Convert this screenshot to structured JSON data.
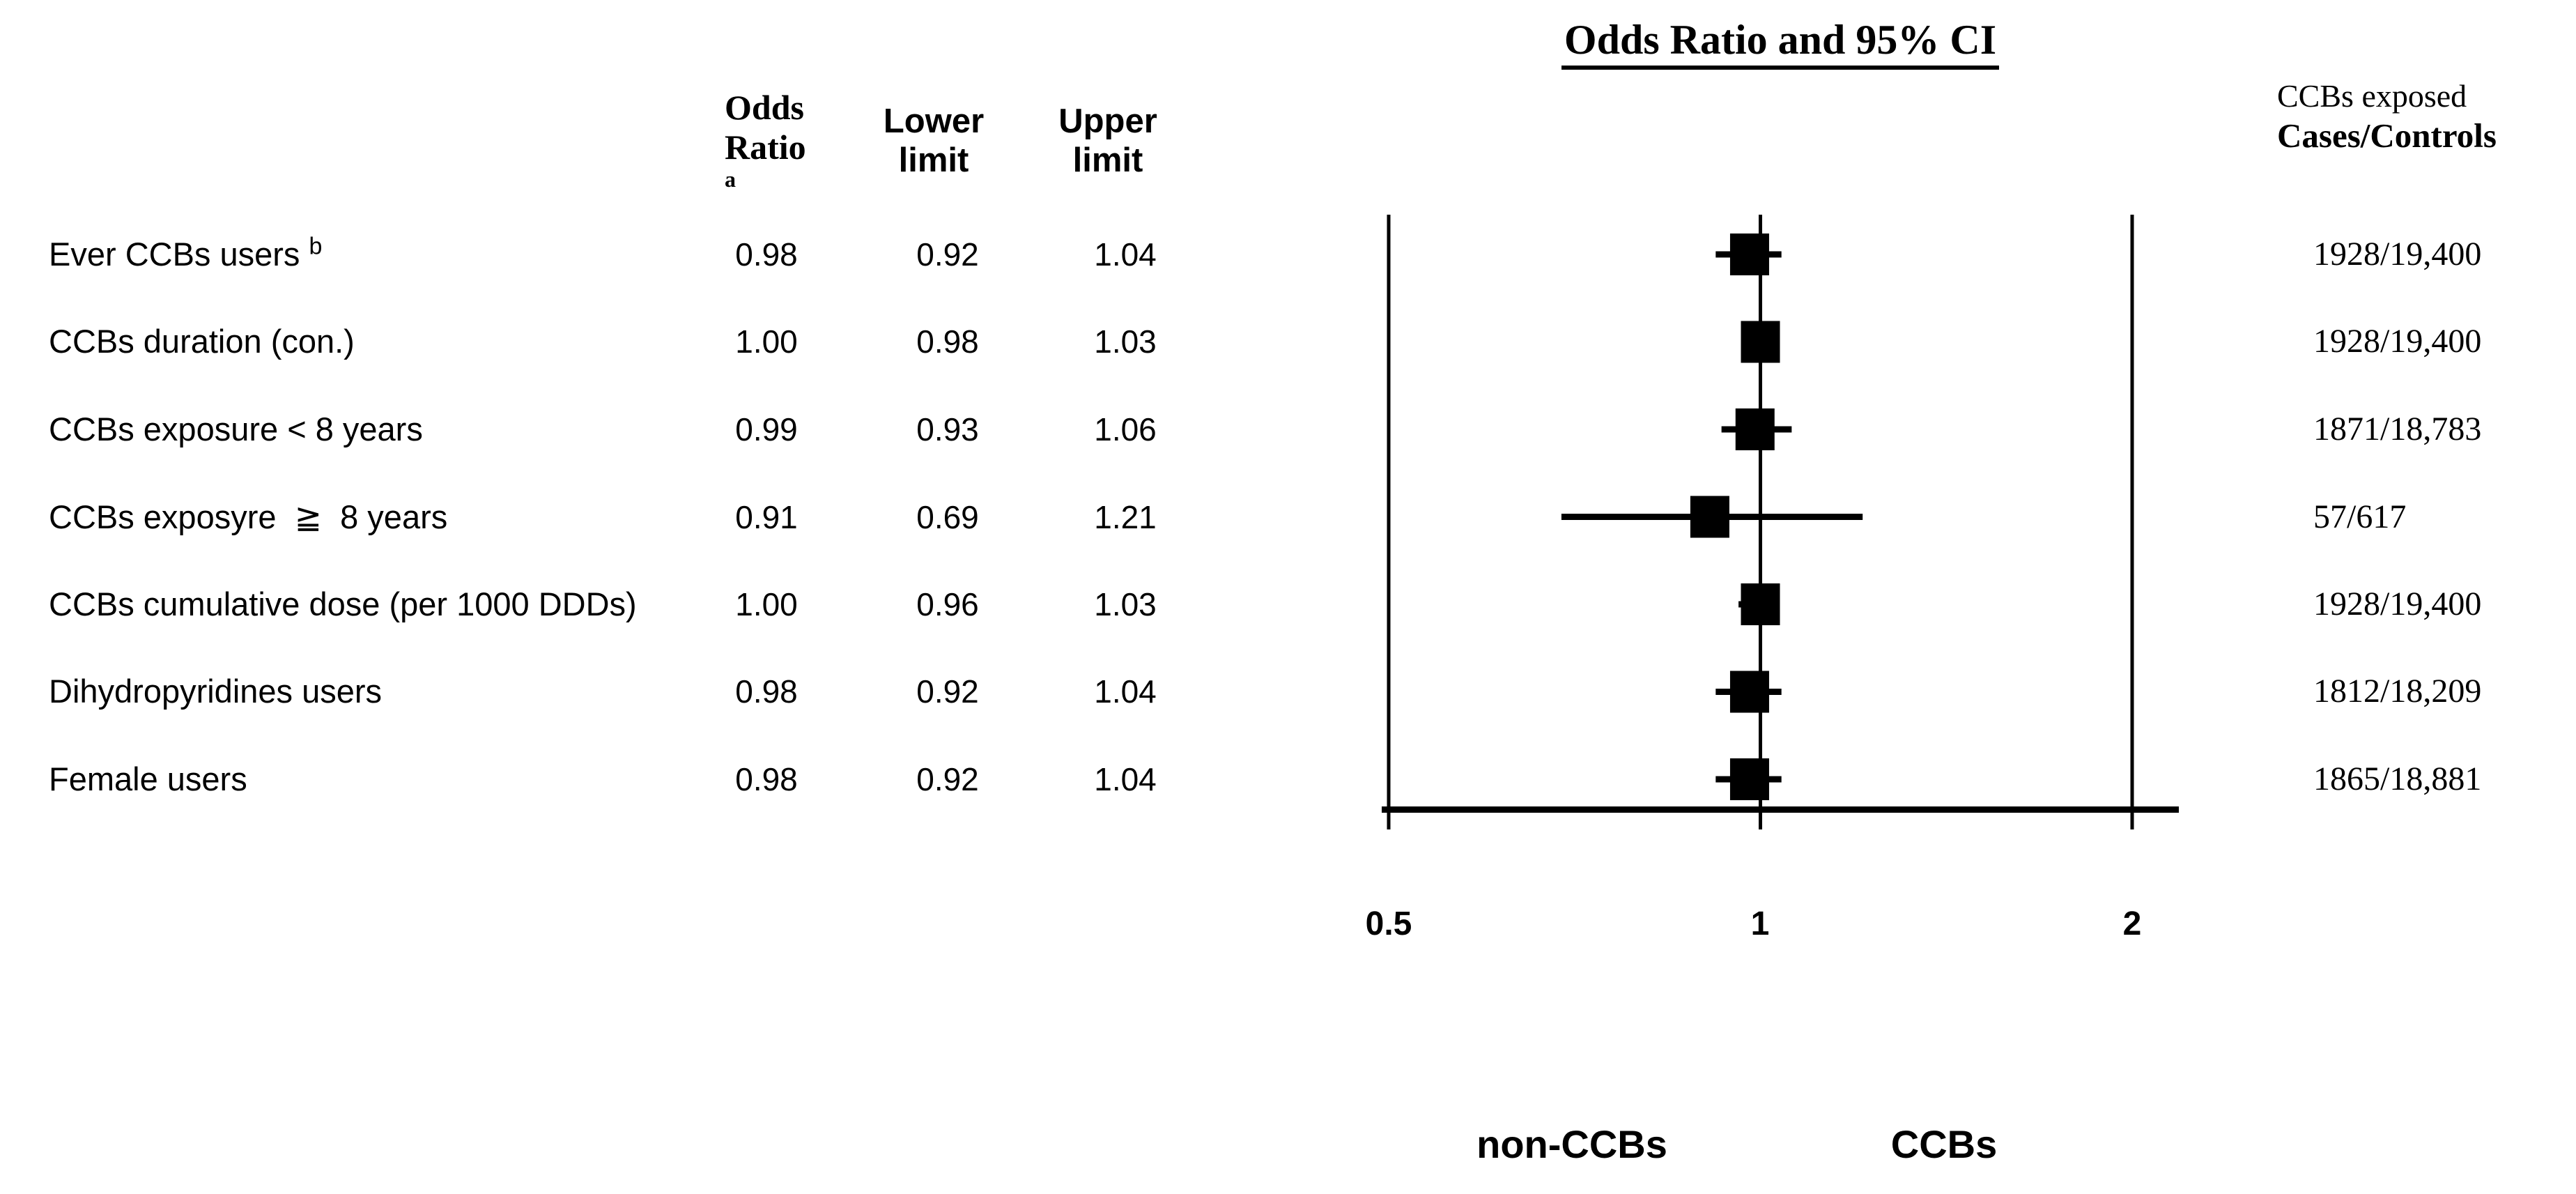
{
  "figure": {
    "title": "Odds Ratio and 95% CI"
  },
  "table": {
    "or_header": "Odds Ratio",
    "or_header_footnote": "a",
    "lower_header": "Lower limit",
    "upper_header": "Upper limit"
  },
  "right_column": {
    "header_line1": "CCBs exposed",
    "header_line2": "Cases/Controls"
  },
  "chart_data": {
    "type": "scatter",
    "variant": "forest-plot",
    "title": "Odds Ratio and 95% CI",
    "x_scale": "log2",
    "x_range": [
      0.5,
      2
    ],
    "x_ticks": [
      "0.5",
      "1",
      "2"
    ],
    "reference_line": 1,
    "grid": false,
    "marker": "filled-square",
    "color": "#000000",
    "group_label_left": "non-CCBs",
    "group_label_right": "CCBs",
    "rows": [
      {
        "label": "Ever CCBs users",
        "sup": "b",
        "or": "0.98",
        "lower": "0.92",
        "upper": "1.04",
        "cases": "1928/19,400"
      },
      {
        "label": "CCBs duration (con.)",
        "sup": "",
        "or": "1.00",
        "lower": "0.98",
        "upper": "1.03",
        "cases": "1928/19,400"
      },
      {
        "label": "CCBs exposure < 8 years",
        "sup": "",
        "or": "0.99",
        "lower": "0.93",
        "upper": "1.06",
        "cases": "1871/18,783"
      },
      {
        "label": "CCBs exposyre  ≧  8 years",
        "sup": "",
        "or": "0.91",
        "lower": "0.69",
        "upper": "1.21",
        "cases": "57/617"
      },
      {
        "label": "CCBs cumulative dose (per 1000 DDDs)",
        "sup": "",
        "or": "1.00",
        "lower": "0.96",
        "upper": "1.03",
        "cases": "1928/19,400"
      },
      {
        "label": "Dihydropyridines users",
        "sup": "",
        "or": "0.98",
        "lower": "0.92",
        "upper": "1.04",
        "cases": "1812/18,209"
      },
      {
        "label": "Female users",
        "sup": "",
        "or": "0.98",
        "lower": "0.92",
        "upper": "1.04",
        "cases": "1865/18,881"
      }
    ]
  }
}
